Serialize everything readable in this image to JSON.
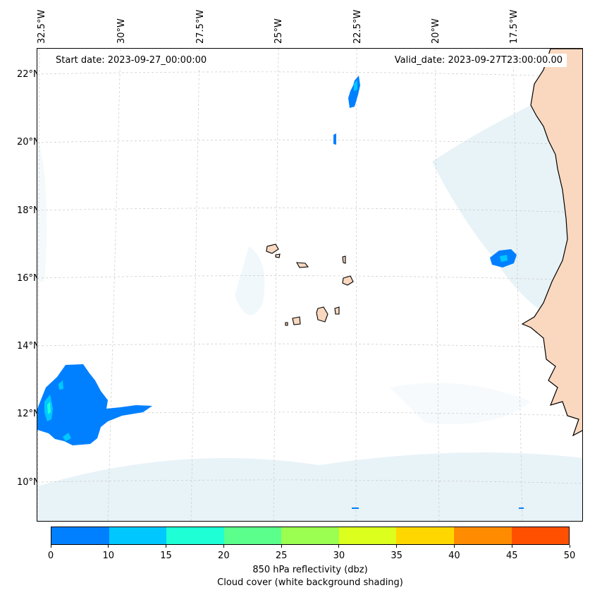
{
  "map": {
    "start_date_text": "Start date: 2023-09-27_00:00:00",
    "valid_date_text": "Valid_date: 2023-09-27T23:00:00.00",
    "lon_labels": [
      "32.5°W",
      "30°W",
      "27.5°W",
      "25°W",
      "22.5°W",
      "20°W",
      "17.5°W"
    ],
    "lat_labels": [
      "22°N",
      "20°N",
      "18°N",
      "16°N",
      "14°N",
      "12°N",
      "10°N"
    ],
    "land_color": "#f9d8bf",
    "cloud_color": "#d6eaf2"
  },
  "colorbar": {
    "ticks": [
      "0",
      "10",
      "15",
      "20",
      "25",
      "30",
      "35",
      "40",
      "45",
      "50"
    ],
    "colors": [
      "#0080ff",
      "#00c8ff",
      "#1effd6",
      "#5aff8c",
      "#9aff50",
      "#dcff1e",
      "#ffd700",
      "#ff8c00",
      "#ff5000"
    ],
    "label_line1": "850 hPa reflectivity (dbz)",
    "label_line2": "Cloud cover (white background shading)"
  }
}
